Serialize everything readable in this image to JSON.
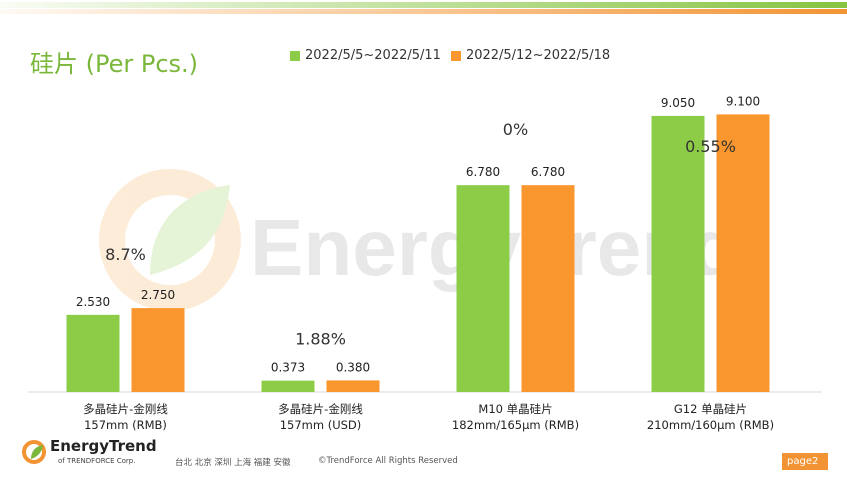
{
  "header": {
    "title": "硅片 (Per Pcs.)"
  },
  "colors": {
    "green": "#8ccc47",
    "orange": "#f9962d",
    "title_green": "#7ab73b",
    "page_badge": "#f29433"
  },
  "chart_data": {
    "type": "bar",
    "title": "硅片 (Per Pcs.)",
    "series": [
      {
        "name": "2022/5/5~2022/5/11",
        "values": [
          2.53,
          0.373,
          6.78,
          9.05
        ],
        "labels": [
          "2.530",
          "0.373",
          "6.780",
          "9.050"
        ]
      },
      {
        "name": "2022/5/12~2022/5/18",
        "values": [
          2.75,
          0.38,
          6.78,
          9.1
        ],
        "labels": [
          "2.750",
          "0.380",
          "6.780",
          "9.100"
        ]
      }
    ],
    "categories": [
      [
        "多晶硅片-金刚线",
        "157mm (RMB)"
      ],
      [
        "多晶硅片-金刚线",
        "157mm (USD)"
      ],
      [
        "M10 单晶硅片",
        "182mm/165μm (RMB)"
      ],
      [
        "G12 单晶硅片",
        "210mm/160μm  (RMB)"
      ]
    ],
    "changes": [
      "8.7%",
      "1.88%",
      "0%",
      "0.55%"
    ],
    "ylim": [
      0,
      10
    ],
    "xlabel": "",
    "ylabel": "",
    "legend": "top-center",
    "grid": false
  },
  "watermark": {
    "text": "EnergyTrend"
  },
  "footer": {
    "logo_text": "EnergyTrend",
    "logo_sub": "of TRENDFORCE Corp.",
    "cities": "台北  北京  深圳  上海  福建  安徽",
    "copyright": "©TrendForce All Rights Reserved",
    "page": "page2"
  }
}
